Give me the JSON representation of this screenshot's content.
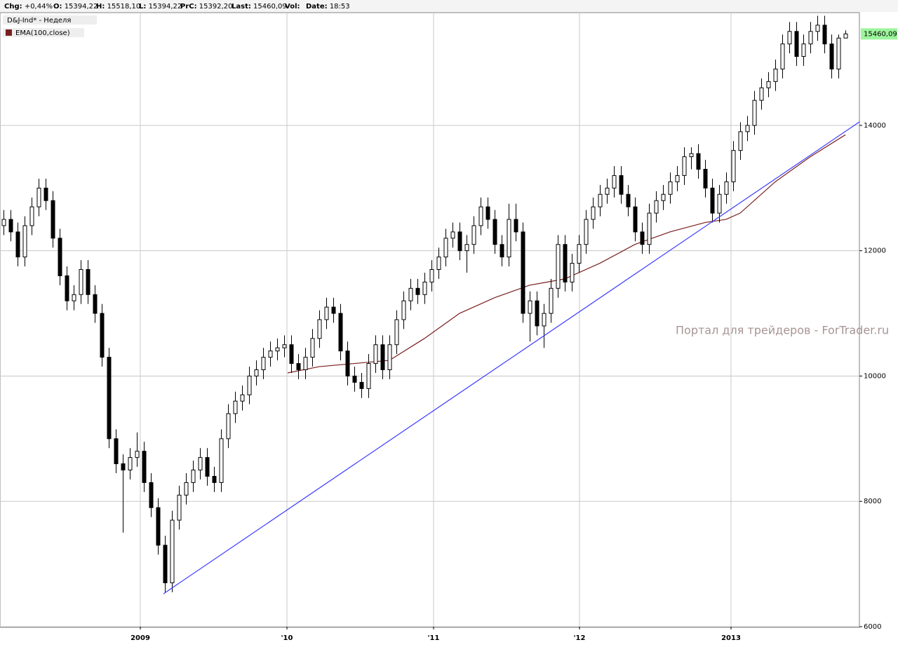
{
  "chart_data": {
    "type": "candlestick",
    "header": [
      {
        "label": "Chg:",
        "value": "+0,44%"
      },
      {
        "label": "O:",
        "value": "15394,22"
      },
      {
        "label": "H:",
        "value": "15518,10"
      },
      {
        "label": "L:",
        "value": "15394,22"
      },
      {
        "label": "PrC:",
        "value": "15392,20"
      },
      {
        "label": "Last:",
        "value": "15460,09"
      },
      {
        "label": "Vol:",
        "value": ""
      },
      {
        "label": "Date:",
        "value": "18:53"
      }
    ],
    "instrument": "D&J-Ind* - Неделя",
    "watermark": "Портал для трейдеров - ForTrader.ru",
    "last_label": "15460,09",
    "last_label_color": "#9cf59c",
    "up_color": "#ffffff",
    "down_color": "#000000",
    "grid": true,
    "ylim": [
      6000,
      15800
    ],
    "yticks": [
      6000,
      8000,
      10000,
      12000,
      14000
    ],
    "xlim": [
      -0.5,
      122
    ],
    "xticks": [
      {
        "value": 19.5,
        "label": "2009"
      },
      {
        "value": 40.4,
        "label": "'10"
      },
      {
        "value": 61.3,
        "label": "'11"
      },
      {
        "value": 82.1,
        "label": "'12"
      },
      {
        "value": 103.7,
        "label": "2013"
      }
    ],
    "candles": [
      [
        12400,
        12650,
        12250,
        12500
      ],
      [
        12500,
        12650,
        12150,
        12300
      ],
      [
        12300,
        12450,
        11750,
        11900
      ],
      [
        11900,
        12550,
        11750,
        12400
      ],
      [
        12400,
        12850,
        12250,
        12700
      ],
      [
        12700,
        13150,
        12550,
        13000
      ],
      [
        13000,
        13150,
        12650,
        12800
      ],
      [
        12800,
        12950,
        12050,
        12200
      ],
      [
        12200,
        12350,
        11450,
        11600
      ],
      [
        11600,
        11750,
        11050,
        11200
      ],
      [
        11200,
        11450,
        11050,
        11300
      ],
      [
        11300,
        11850,
        11150,
        11700
      ],
      [
        11700,
        11850,
        11150,
        11300
      ],
      [
        11300,
        11450,
        10850,
        11000
      ],
      [
        11000,
        11150,
        10150,
        10300
      ],
      [
        10300,
        10450,
        8850,
        9000
      ],
      [
        9000,
        9150,
        8450,
        8600
      ],
      [
        8600,
        8750,
        7500,
        8500
      ],
      [
        8500,
        8850,
        8350,
        8700
      ],
      [
        8700,
        9100,
        8550,
        8800
      ],
      [
        8800,
        8950,
        8150,
        8300
      ],
      [
        8300,
        8450,
        7750,
        7900
      ],
      [
        7900,
        8050,
        7150,
        7300
      ],
      [
        7300,
        7450,
        6550,
        6700
      ],
      [
        6700,
        7850,
        6550,
        7700
      ],
      [
        7700,
        8250,
        7550,
        8100
      ],
      [
        8100,
        8450,
        7950,
        8300
      ],
      [
        8300,
        8650,
        8150,
        8500
      ],
      [
        8500,
        8850,
        8350,
        8700
      ],
      [
        8700,
        8850,
        8250,
        8400
      ],
      [
        8400,
        8550,
        8150,
        8300
      ],
      [
        8300,
        9150,
        8150,
        9000
      ],
      [
        9000,
        9550,
        8850,
        9400
      ],
      [
        9400,
        9750,
        9250,
        9600
      ],
      [
        9600,
        9850,
        9450,
        9700
      ],
      [
        9700,
        10150,
        9550,
        10000
      ],
      [
        10000,
        10250,
        9850,
        10100
      ],
      [
        10100,
        10450,
        9950,
        10300
      ],
      [
        10300,
        10550,
        10150,
        10400
      ],
      [
        10400,
        10600,
        10250,
        10450
      ],
      [
        10450,
        10650,
        10300,
        10500
      ],
      [
        10500,
        10650,
        10050,
        10200
      ],
      [
        10200,
        10350,
        9950,
        10100
      ],
      [
        10100,
        10450,
        9950,
        10300
      ],
      [
        10300,
        10750,
        10150,
        10600
      ],
      [
        10600,
        11050,
        10450,
        10900
      ],
      [
        10900,
        11250,
        10750,
        11100
      ],
      [
        11100,
        11250,
        10850,
        11000
      ],
      [
        11000,
        11150,
        10250,
        10400
      ],
      [
        10400,
        10550,
        9850,
        10000
      ],
      [
        10000,
        10150,
        9750,
        9900
      ],
      [
        9900,
        10050,
        9650,
        9800
      ],
      [
        9800,
        10350,
        9650,
        10200
      ],
      [
        10200,
        10650,
        10050,
        10500
      ],
      [
        10500,
        10650,
        9950,
        10100
      ],
      [
        10100,
        10650,
        9950,
        10500
      ],
      [
        10500,
        11050,
        10350,
        10900
      ],
      [
        10900,
        11350,
        10750,
        11200
      ],
      [
        11200,
        11550,
        11050,
        11400
      ],
      [
        11400,
        11550,
        11150,
        11300
      ],
      [
        11300,
        11650,
        11150,
        11500
      ],
      [
        11500,
        11850,
        11350,
        11700
      ],
      [
        11700,
        12050,
        11550,
        11900
      ],
      [
        11900,
        12350,
        11750,
        12200
      ],
      [
        12200,
        12450,
        12050,
        12300
      ],
      [
        12300,
        12450,
        11850,
        12000
      ],
      [
        12000,
        12250,
        11650,
        12100
      ],
      [
        12100,
        12550,
        11950,
        12400
      ],
      [
        12400,
        12850,
        12250,
        12700
      ],
      [
        12700,
        12850,
        12350,
        12500
      ],
      [
        12500,
        12650,
        11950,
        12100
      ],
      [
        12100,
        12250,
        11750,
        11900
      ],
      [
        11900,
        12750,
        11750,
        12500
      ],
      [
        12500,
        12750,
        12150,
        12300
      ],
      [
        12300,
        12450,
        10850,
        11000
      ],
      [
        11000,
        11350,
        10550,
        11200
      ],
      [
        11200,
        11350,
        10650,
        10800
      ],
      [
        10800,
        11150,
        10450,
        11000
      ],
      [
        11000,
        11550,
        10850,
        11400
      ],
      [
        11400,
        12250,
        11250,
        12100
      ],
      [
        12100,
        12250,
        11350,
        11500
      ],
      [
        11500,
        11950,
        11350,
        11800
      ],
      [
        11800,
        12250,
        11650,
        12100
      ],
      [
        12100,
        12650,
        11950,
        12500
      ],
      [
        12500,
        12850,
        12350,
        12700
      ],
      [
        12700,
        13050,
        12550,
        12900
      ],
      [
        12900,
        13150,
        12750,
        13000
      ],
      [
        13000,
        13350,
        12850,
        13200
      ],
      [
        13200,
        13350,
        12750,
        12900
      ],
      [
        12900,
        13050,
        12550,
        12700
      ],
      [
        12700,
        12850,
        12150,
        12300
      ],
      [
        12300,
        12450,
        11950,
        12100
      ],
      [
        12100,
        12750,
        11950,
        12600
      ],
      [
        12600,
        12950,
        12450,
        12800
      ],
      [
        12800,
        13050,
        12650,
        12900
      ],
      [
        12900,
        13250,
        12750,
        13100
      ],
      [
        13100,
        13350,
        12950,
        13200
      ],
      [
        13200,
        13650,
        13050,
        13500
      ],
      [
        13500,
        13650,
        13300,
        13550
      ],
      [
        13550,
        13700,
        13150,
        13300
      ],
      [
        13300,
        13450,
        12850,
        13000
      ],
      [
        13000,
        13150,
        12450,
        12600
      ],
      [
        12600,
        13050,
        12450,
        12900
      ],
      [
        12900,
        13250,
        12750,
        13100
      ],
      [
        13100,
        13750,
        12950,
        13600
      ],
      [
        13600,
        14050,
        13450,
        13900
      ],
      [
        13900,
        14150,
        13750,
        14000
      ],
      [
        14000,
        14550,
        13850,
        14400
      ],
      [
        14400,
        14750,
        14250,
        14600
      ],
      [
        14600,
        14850,
        14450,
        14700
      ],
      [
        14700,
        15050,
        14550,
        14900
      ],
      [
        14900,
        15450,
        14750,
        15300
      ],
      [
        15300,
        15650,
        15150,
        15500
      ],
      [
        15500,
        15650,
        14950,
        15100
      ],
      [
        15100,
        15450,
        14950,
        15300
      ],
      [
        15300,
        15650,
        15150,
        15500
      ],
      [
        15500,
        15750,
        15350,
        15600
      ],
      [
        15600,
        15750,
        15150,
        15300
      ],
      [
        15300,
        15450,
        14750,
        14900
      ],
      [
        14900,
        15450,
        14750,
        15394
      ],
      [
        15394,
        15518,
        15394,
        15460
      ]
    ],
    "ema": {
      "name": "EMA(100,close)",
      "color": "#7a1f1f",
      "x": [
        40.5,
        45,
        50,
        55,
        60,
        65,
        70,
        75,
        80,
        85,
        90,
        95,
        100,
        103,
        105,
        110,
        115,
        120
      ],
      "values": [
        10050,
        10150,
        10200,
        10250,
        10600,
        11000,
        11250,
        11450,
        11550,
        11800,
        12100,
        12300,
        12450,
        12500,
        12600,
        13100,
        13500,
        13850
      ]
    },
    "trend_line": {
      "color": "#3c3cff",
      "x": [
        22.8,
        122
      ],
      "values": [
        6525,
        14056
      ]
    }
  }
}
